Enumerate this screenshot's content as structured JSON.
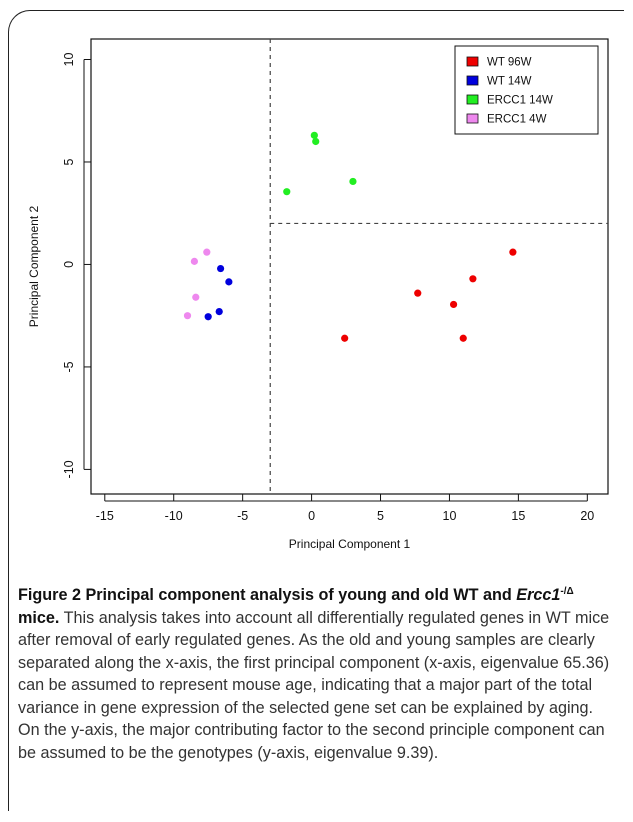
{
  "chart_data": {
    "type": "scatter",
    "xlabel": "Principal Component 1",
    "ylabel": "Principal Component 2",
    "xlim": [
      -16,
      21.5
    ],
    "ylim": [
      -11.2,
      11
    ],
    "xticks": [
      -15,
      -10,
      -5,
      0,
      5,
      10,
      15,
      20
    ],
    "yticks": [
      -10,
      -5,
      0,
      5,
      10
    ],
    "reference_lines": {
      "vertical_x": -3,
      "horizontal_y": 2
    },
    "legend_position": "top-right",
    "series": [
      {
        "name": "WT 96W",
        "color": "#ee0000",
        "points": [
          [
            14.6,
            0.6
          ],
          [
            11.7,
            -0.7
          ],
          [
            7.7,
            -1.4
          ],
          [
            10.3,
            -1.95
          ],
          [
            11.0,
            -3.6
          ],
          [
            2.4,
            -3.6
          ]
        ]
      },
      {
        "name": "WT 14W",
        "color": "#0000dd",
        "points": [
          [
            -6.6,
            -0.2
          ],
          [
            -6.0,
            -0.85
          ],
          [
            -6.7,
            -2.3
          ],
          [
            -7.5,
            -2.55
          ]
        ]
      },
      {
        "name": "ERCC1 14W",
        "color": "#22ee22",
        "points": [
          [
            0.2,
            6.3
          ],
          [
            0.3,
            6.0
          ],
          [
            3.0,
            4.05
          ],
          [
            -1.8,
            3.55
          ]
        ]
      },
      {
        "name": "ERCC1 4W",
        "color": "#ee88ee",
        "points": [
          [
            -7.6,
            0.6
          ],
          [
            -8.5,
            0.15
          ],
          [
            -8.4,
            -1.6
          ],
          [
            -9.0,
            -2.5
          ]
        ]
      }
    ]
  },
  "caption": {
    "figure_label": "Figure 2 Principal component analysis of young and old WT and ",
    "gene_name": "Ercc1",
    "gene_superscript": "-/Δ",
    "title_end": " mice.",
    "body": " This analysis takes into account all differentially regulated genes in WT mice after removal of early regulated genes. As the old and young samples are clearly separated along the x-axis, the first principal component (x-axis, eigenvalue 65.36) can be assumed to represent mouse age, indicating that a major part of the total variance in gene expression of the selected gene set can be explained by aging. On the y-axis, the major contributing factor to the second principle component can be assumed to be the genotypes (y-axis, eigenvalue 9.39)."
  }
}
